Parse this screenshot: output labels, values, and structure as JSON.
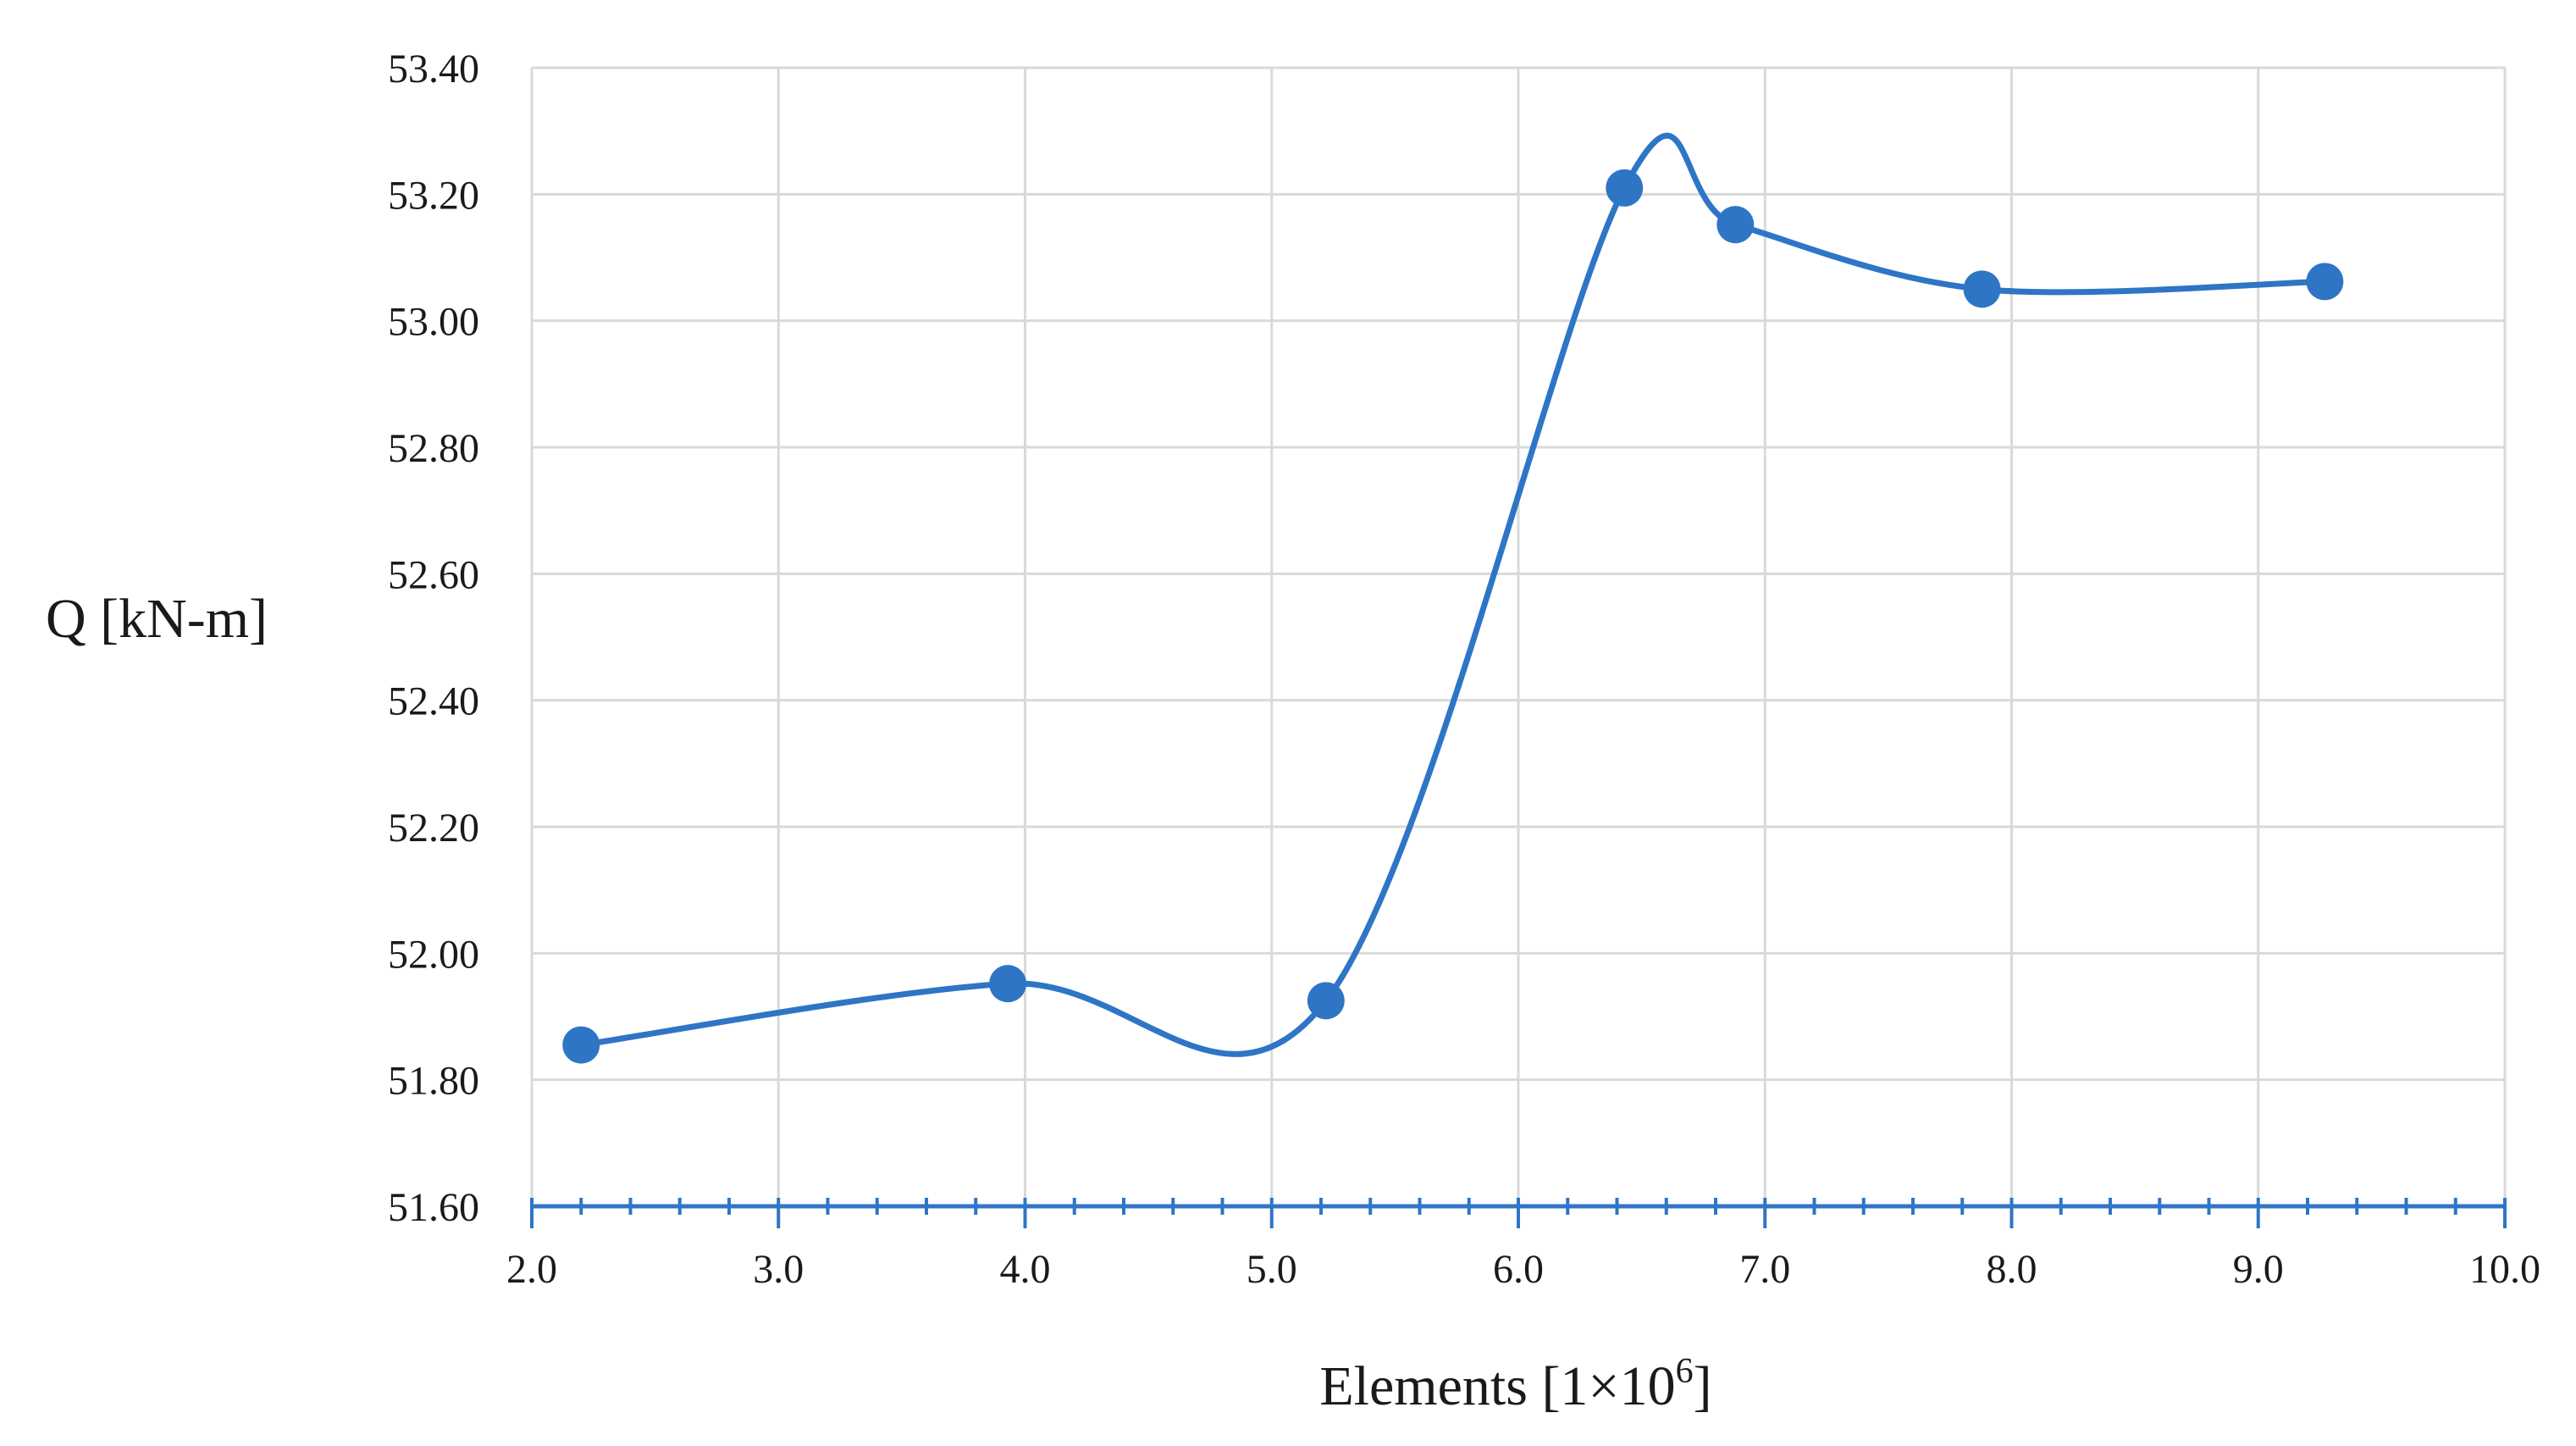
{
  "chart_data": {
    "type": "line",
    "title": "",
    "xlabel": "Elements [1×10",
    "xlabel_superscript": "6",
    "xlabel_suffix": "]",
    "ylabel": "Q [kN-m]",
    "xlim": [
      2.0,
      10.0
    ],
    "ylim": [
      51.6,
      53.4
    ],
    "xticks": [
      "2.0",
      "3.0",
      "4.0",
      "5.0",
      "6.0",
      "7.0",
      "8.0",
      "9.0",
      "10.0"
    ],
    "yticks": [
      "51.60",
      "51.80",
      "52.00",
      "52.20",
      "52.40",
      "52.60",
      "52.80",
      "53.00",
      "53.20",
      "53.40"
    ],
    "xtick_values": [
      2,
      3,
      4,
      5,
      6,
      7,
      8,
      9,
      10
    ],
    "ytick_values": [
      51.6,
      51.8,
      52.0,
      52.2,
      52.4,
      52.6,
      52.8,
      53.0,
      53.2,
      53.4
    ],
    "minor_xtick_step": 0.2,
    "grid": true,
    "smooth": true,
    "color": "#2e75c6",
    "series": [
      {
        "x": [
          2.2,
          3.93,
          5.22,
          6.43,
          6.88,
          7.88,
          9.27
        ],
        "y": [
          51.855,
          51.952,
          51.925,
          53.21,
          53.152,
          53.05,
          53.062
        ]
      }
    ]
  }
}
